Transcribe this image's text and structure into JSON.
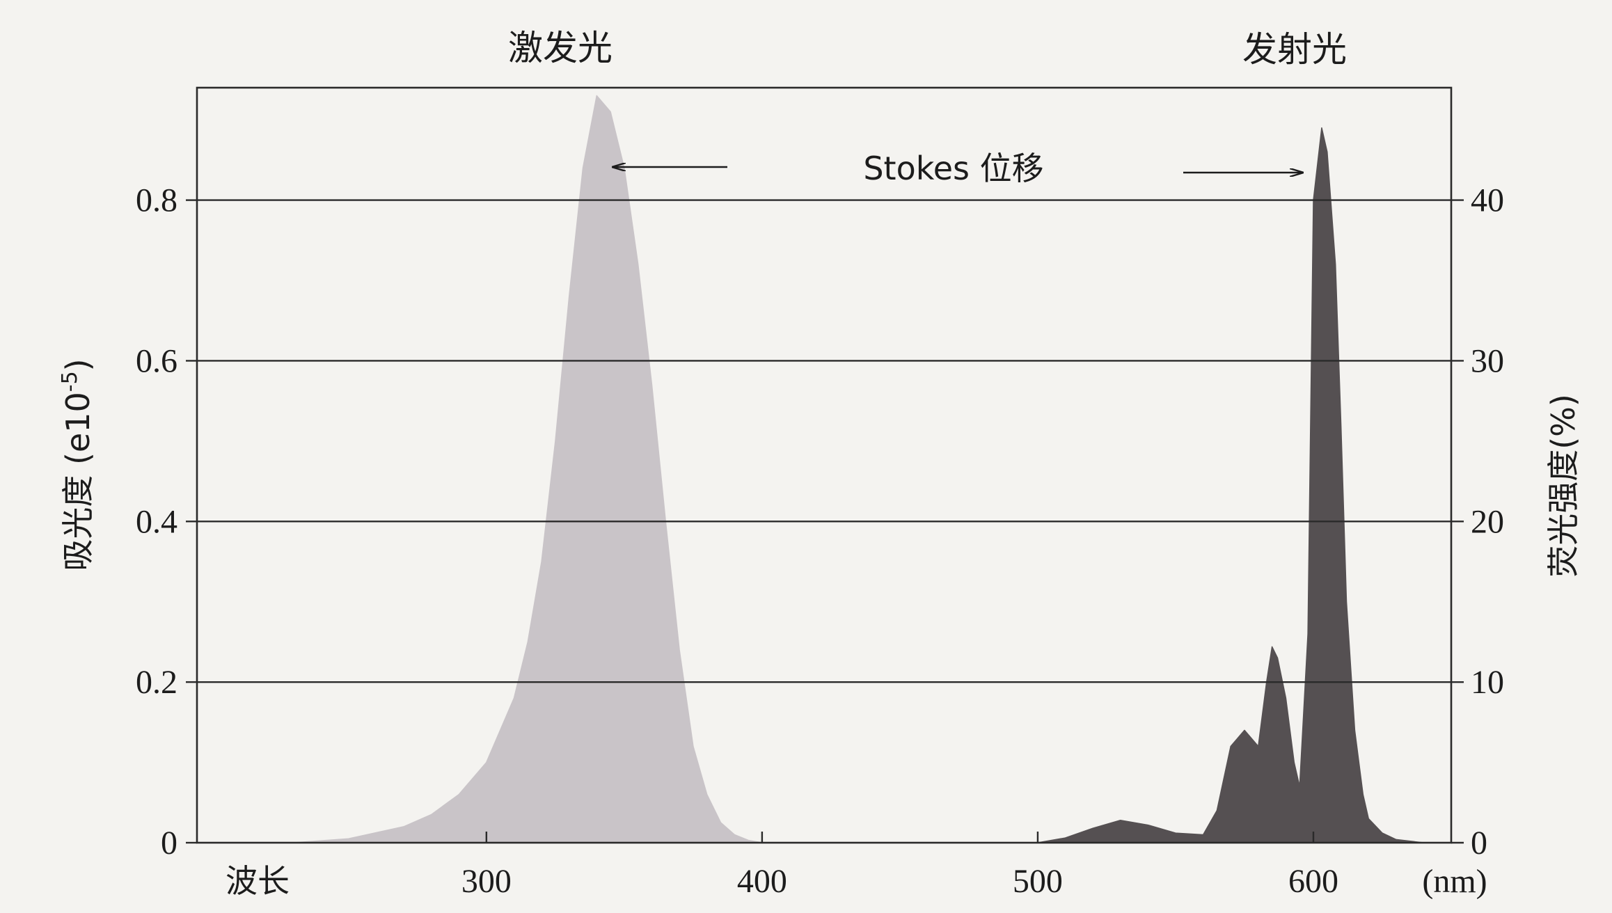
{
  "chart_data": {
    "type": "area",
    "peak_labels": {
      "excitation": "激发光",
      "emission": "发射光"
    },
    "annotation": {
      "text": "Stokes 位移"
    },
    "xaxis": {
      "label": "波长",
      "unit": "(nm)",
      "ticks": [
        300,
        400,
        500,
        600
      ],
      "range": [
        195,
        650
      ]
    },
    "y_left": {
      "label": "吸光度 (e10",
      "label_exponent": "-5",
      "label_close": ")",
      "ticks": [
        "0",
        "0.2",
        "0.4",
        "0.6",
        "0.8"
      ],
      "tick_values": [
        0,
        0.2,
        0.4,
        0.6,
        0.8
      ],
      "range": [
        0,
        0.94
      ]
    },
    "y_right": {
      "label": "荧光强度(%)",
      "ticks": [
        "0",
        "10",
        "20",
        "30",
        "40"
      ],
      "tick_values": [
        0,
        10,
        20,
        30,
        40
      ],
      "range": [
        0,
        47
      ]
    },
    "grid": true,
    "series": [
      {
        "axis": "left",
        "color": "#c9c4c8",
        "x": [
          230,
          250,
          270,
          280,
          290,
          300,
          310,
          315,
          320,
          325,
          330,
          335,
          340,
          345,
          350,
          355,
          360,
          365,
          370,
          375,
          380,
          385,
          390,
          395,
          400
        ],
        "y": [
          0,
          0.005,
          0.02,
          0.035,
          0.06,
          0.1,
          0.18,
          0.25,
          0.35,
          0.5,
          0.68,
          0.84,
          0.93,
          0.91,
          0.84,
          0.72,
          0.57,
          0.4,
          0.24,
          0.12,
          0.06,
          0.025,
          0.01,
          0.003,
          0
        ]
      },
      {
        "axis": "right",
        "color": "#555052",
        "x": [
          500,
          510,
          520,
          530,
          540,
          550,
          560,
          565,
          570,
          575,
          580,
          583,
          585,
          587,
          590,
          593,
          595,
          598,
          600,
          603,
          605,
          608,
          610,
          612,
          615,
          618,
          620,
          625,
          630,
          640
        ],
        "y": [
          0,
          0.3,
          0.9,
          1.4,
          1.1,
          0.6,
          0.5,
          2,
          6,
          7,
          6,
          10,
          12.2,
          11.5,
          9,
          5,
          3.5,
          13,
          40,
          44.5,
          43,
          36,
          26,
          15,
          7,
          3,
          1.5,
          0.6,
          0.2,
          0
        ]
      }
    ]
  }
}
